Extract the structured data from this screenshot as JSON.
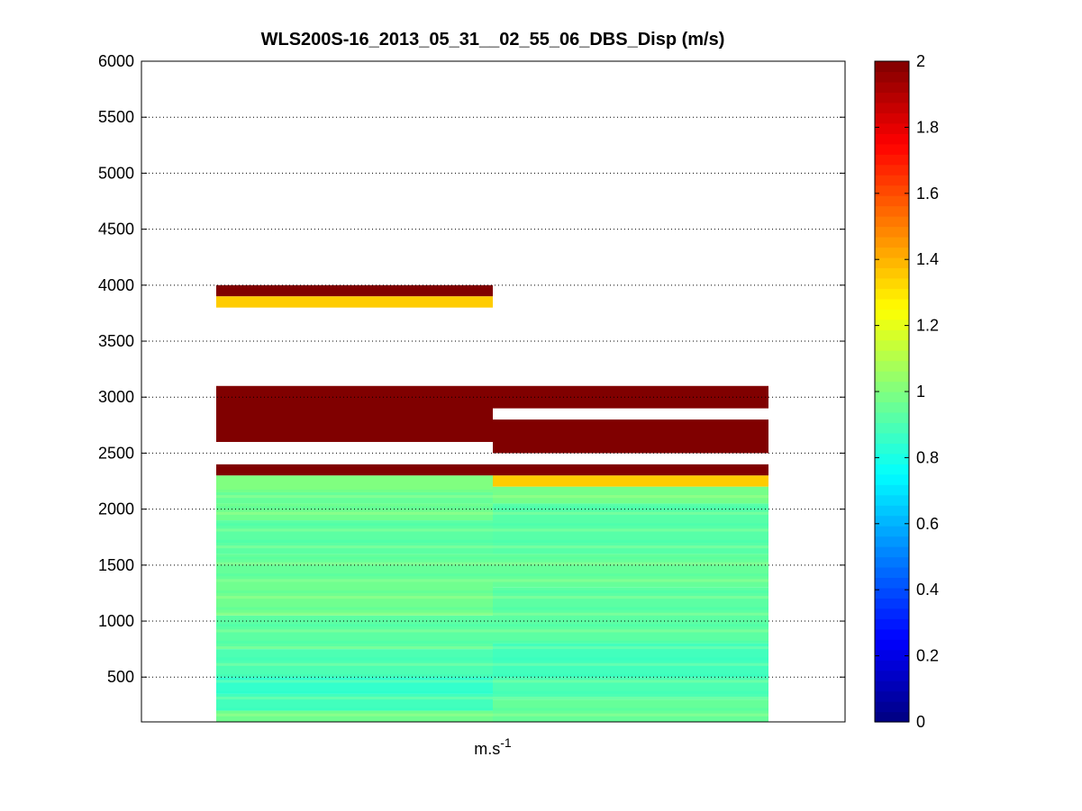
{
  "chart_data": {
    "type": "heatmap",
    "title": "WLS200S-16_2013_05_31__02_55_06_DBS_Disp (m/s)",
    "xlabel": "m.s",
    "xlabel_superscript": "-1",
    "ylabel": "",
    "ylim": [
      100,
      6000
    ],
    "yticks": [
      500,
      1000,
      1500,
      2000,
      2500,
      3000,
      3500,
      4000,
      4500,
      5000,
      5500,
      6000
    ],
    "grid": true,
    "colorbar": {
      "colormap": "jet",
      "clim": [
        0,
        2
      ],
      "ticks": [
        0,
        0.2,
        0.4,
        0.6,
        0.8,
        1,
        1.2,
        1.4,
        1.6,
        1.8,
        2
      ],
      "tick_labels": [
        "0",
        "0.2",
        "0.4",
        "0.6",
        "0.8",
        "1",
        "1.2",
        "1.4",
        "1.6",
        "1.8",
        "2"
      ]
    },
    "columns": [
      {
        "segments": [
          {
            "y0": 3900,
            "y1": 4000,
            "value": 2.0
          },
          {
            "y0": 3800,
            "y1": 3900,
            "value": 1.35
          },
          {
            "y0": 2600,
            "y1": 3100,
            "value": 2.0
          },
          {
            "y0": 2300,
            "y1": 2400,
            "value": 2.0
          },
          {
            "y0": 2150,
            "y1": 2300,
            "value": 1.0
          },
          {
            "y0": 2050,
            "y1": 2150,
            "value": 0.95
          },
          {
            "y0": 1900,
            "y1": 2050,
            "value": 0.97
          },
          {
            "y0": 1600,
            "y1": 1900,
            "value": 0.93
          },
          {
            "y0": 1350,
            "y1": 1600,
            "value": 0.95
          },
          {
            "y0": 1050,
            "y1": 1350,
            "value": 0.97
          },
          {
            "y0": 750,
            "y1": 1050,
            "value": 0.93
          },
          {
            "y0": 500,
            "y1": 750,
            "value": 0.9
          },
          {
            "y0": 350,
            "y1": 500,
            "value": 0.85
          },
          {
            "y0": 200,
            "y1": 350,
            "value": 0.88
          },
          {
            "y0": 100,
            "y1": 200,
            "value": 0.97
          }
        ]
      },
      {
        "segments": [
          {
            "y0": 2900,
            "y1": 3100,
            "value": 2.0
          },
          {
            "y0": 2500,
            "y1": 2800,
            "value": 2.0
          },
          {
            "y0": 2300,
            "y1": 2400,
            "value": 2.0
          },
          {
            "y0": 2200,
            "y1": 2300,
            "value": 1.35
          },
          {
            "y0": 2050,
            "y1": 2200,
            "value": 0.98
          },
          {
            "y0": 1600,
            "y1": 2050,
            "value": 0.92
          },
          {
            "y0": 1300,
            "y1": 1600,
            "value": 0.95
          },
          {
            "y0": 800,
            "y1": 1300,
            "value": 0.93
          },
          {
            "y0": 500,
            "y1": 800,
            "value": 0.88
          },
          {
            "y0": 300,
            "y1": 500,
            "value": 0.9
          },
          {
            "y0": 100,
            "y1": 300,
            "value": 0.95
          }
        ]
      }
    ]
  }
}
